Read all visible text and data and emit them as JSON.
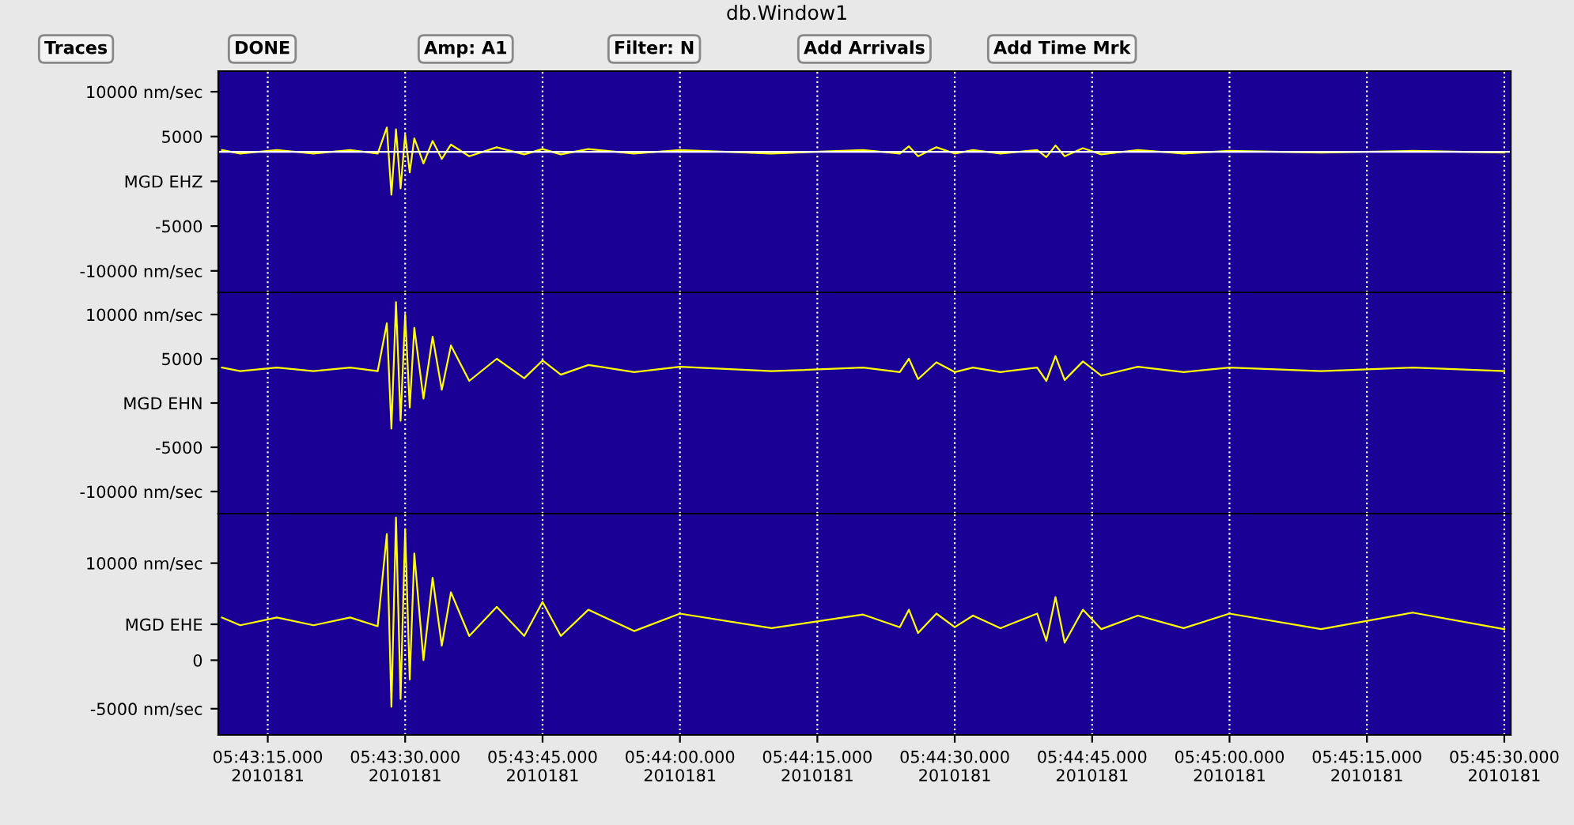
{
  "chart_data": [
    {
      "type": "line",
      "title": "db.Window1",
      "annotations": [
        "Traces",
        "DONE",
        "Amp: A1",
        "Filter: N",
        "Add Arrivals",
        "Add Time Mrk"
      ],
      "xlim": [
        "2010-06-30T05:43:09.6",
        "2010-06-30T05:45:30.7"
      ],
      "xticks": [
        {
          "value": "2010-06-30T05:43:15",
          "label": null
        },
        {
          "value": "2010-06-30T05:43:30",
          "label": null
        },
        {
          "value": "2010-06-30T05:43:45",
          "label": null
        },
        {
          "value": "2010-06-30T05:44:00",
          "label": null
        },
        {
          "value": "2010-06-30T05:44:15",
          "label": null
        },
        {
          "value": "2010-06-30T05:44:30",
          "label": null
        },
        {
          "value": "2010-06-30T05:44:45",
          "label": null
        },
        {
          "value": "2010-06-30T05:45:00",
          "label": null
        },
        {
          "value": "2010-06-30T05:45:15",
          "label": null
        },
        {
          "value": "2010-06-30T05:45:30",
          "label": null
        }
      ],
      "ylim": [
        -12400,
        12300
      ],
      "yticks": [
        {
          "value": 10000,
          "label": "10000 nm/sec"
        },
        5000,
        {
          "value": 0,
          "label": "MGD EHZ"
        },
        -5000,
        {
          "value": -10000,
          "label": "-10000 nm/sec"
        }
      ],
      "tick_labels": "y",
      "grid": "x",
      "ref_lines": [
        {
          "axis": "y",
          "value": 3300,
          "color": "#ffffff"
        }
      ],
      "series": [
        {
          "color": "#ffff00",
          "x": [
            "2010-06-30T05:43:10",
            "2010-06-30T05:43:12",
            "2010-06-30T05:43:16",
            "2010-06-30T05:43:20",
            "2010-06-30T05:43:24",
            "2010-06-30T05:43:27",
            "2010-06-30T05:43:28",
            "2010-06-30T05:43:28.5",
            "2010-06-30T05:43:29",
            "2010-06-30T05:43:29.5",
            "2010-06-30T05:43:30",
            "2010-06-30T05:43:30.5",
            "2010-06-30T05:43:31",
            "2010-06-30T05:43:32",
            "2010-06-30T05:43:33",
            "2010-06-30T05:43:34",
            "2010-06-30T05:43:35",
            "2010-06-30T05:43:37",
            "2010-06-30T05:43:40",
            "2010-06-30T05:43:43",
            "2010-06-30T05:43:45",
            "2010-06-30T05:43:47",
            "2010-06-30T05:43:50",
            "2010-06-30T05:43:55",
            "2010-06-30T05:44:00",
            "2010-06-30T05:44:10",
            "2010-06-30T05:44:20",
            "2010-06-30T05:44:24",
            "2010-06-30T05:44:25",
            "2010-06-30T05:44:26",
            "2010-06-30T05:44:28",
            "2010-06-30T05:44:30",
            "2010-06-30T05:44:32",
            "2010-06-30T05:44:35",
            "2010-06-30T05:44:39",
            "2010-06-30T05:44:40",
            "2010-06-30T05:44:41",
            "2010-06-30T05:44:42",
            "2010-06-30T05:44:44",
            "2010-06-30T05:44:46",
            "2010-06-30T05:44:50",
            "2010-06-30T05:44:55",
            "2010-06-30T05:45:00",
            "2010-06-30T05:45:10",
            "2010-06-30T05:45:20",
            "2010-06-30T05:45:30"
          ],
          "values": [
            3500,
            3100,
            3500,
            3100,
            3500,
            3100,
            6000,
            -1500,
            5800,
            -800,
            5200,
            1000,
            4800,
            2000,
            4500,
            2500,
            4100,
            2800,
            3800,
            3000,
            3600,
            3000,
            3600,
            3100,
            3500,
            3100,
            3500,
            3100,
            3900,
            2800,
            3800,
            3100,
            3500,
            3100,
            3500,
            2700,
            4000,
            2800,
            3700,
            3000,
            3500,
            3100,
            3400,
            3200,
            3400,
            3200
          ]
        }
      ]
    },
    {
      "type": "line",
      "xlim": [
        "2010-06-30T05:43:09.6",
        "2010-06-30T05:45:30.7"
      ],
      "xticks": [
        {
          "value": "2010-06-30T05:43:15",
          "label": null
        },
        {
          "value": "2010-06-30T05:43:30",
          "label": null
        },
        {
          "value": "2010-06-30T05:43:45",
          "label": null
        },
        {
          "value": "2010-06-30T05:44:00",
          "label": null
        },
        {
          "value": "2010-06-30T05:44:15",
          "label": null
        },
        {
          "value": "2010-06-30T05:44:30",
          "label": null
        },
        {
          "value": "2010-06-30T05:44:45",
          "label": null
        },
        {
          "value": "2010-06-30T05:45:00",
          "label": null
        },
        {
          "value": "2010-06-30T05:45:15",
          "label": null
        },
        {
          "value": "2010-06-30T05:45:30",
          "label": null
        }
      ],
      "ylim": [
        -12500,
        12500
      ],
      "yticks": [
        {
          "value": 10000,
          "label": "10000 nm/sec"
        },
        5000,
        {
          "value": 0,
          "label": "MGD EHN"
        },
        -5000,
        {
          "value": -10000,
          "label": "-10000 nm/sec"
        }
      ],
      "tick_labels": "y",
      "grid": "x",
      "series": [
        {
          "color": "#ffff00",
          "x": [
            "2010-06-30T05:43:10",
            "2010-06-30T05:43:12",
            "2010-06-30T05:43:16",
            "2010-06-30T05:43:20",
            "2010-06-30T05:43:24",
            "2010-06-30T05:43:27",
            "2010-06-30T05:43:28",
            "2010-06-30T05:43:28.5",
            "2010-06-30T05:43:29",
            "2010-06-30T05:43:29.5",
            "2010-06-30T05:43:30",
            "2010-06-30T05:43:30.5",
            "2010-06-30T05:43:31",
            "2010-06-30T05:43:32",
            "2010-06-30T05:43:33",
            "2010-06-30T05:43:34",
            "2010-06-30T05:43:35",
            "2010-06-30T05:43:37",
            "2010-06-30T05:43:40",
            "2010-06-30T05:43:43",
            "2010-06-30T05:43:45",
            "2010-06-30T05:43:47",
            "2010-06-30T05:43:50",
            "2010-06-30T05:43:55",
            "2010-06-30T05:44:00",
            "2010-06-30T05:44:10",
            "2010-06-30T05:44:20",
            "2010-06-30T05:44:24",
            "2010-06-30T05:44:25",
            "2010-06-30T05:44:26",
            "2010-06-30T05:44:28",
            "2010-06-30T05:44:30",
            "2010-06-30T05:44:32",
            "2010-06-30T05:44:35",
            "2010-06-30T05:44:39",
            "2010-06-30T05:44:40",
            "2010-06-30T05:44:41",
            "2010-06-30T05:44:42",
            "2010-06-30T05:44:44",
            "2010-06-30T05:44:46",
            "2010-06-30T05:44:50",
            "2010-06-30T05:44:55",
            "2010-06-30T05:45:00",
            "2010-06-30T05:45:10",
            "2010-06-30T05:45:20",
            "2010-06-30T05:45:30"
          ],
          "values": [
            4000,
            3600,
            4000,
            3600,
            4000,
            3600,
            9000,
            -2900,
            11400,
            -2000,
            10000,
            -500,
            8500,
            500,
            7500,
            1500,
            6500,
            2500,
            5000,
            2800,
            4800,
            3200,
            4300,
            3500,
            4100,
            3600,
            4000,
            3500,
            5000,
            2700,
            4600,
            3500,
            4000,
            3500,
            4000,
            2500,
            5300,
            2600,
            4700,
            3100,
            4100,
            3500,
            4000,
            3600,
            4000,
            3600
          ]
        }
      ]
    },
    {
      "type": "line",
      "xlim": [
        "2010-06-30T05:43:09.6",
        "2010-06-30T05:45:30.7"
      ],
      "xticks": [
        {
          "value": "2010-06-30T05:43:15",
          "label": "05:43:15.000\n2010181"
        },
        {
          "value": "2010-06-30T05:43:30",
          "label": "05:43:30.000\n2010181"
        },
        {
          "value": "2010-06-30T05:43:45",
          "label": "05:43:45.000\n2010181"
        },
        {
          "value": "2010-06-30T05:44:00",
          "label": "05:44:00.000\n2010181"
        },
        {
          "value": "2010-06-30T05:44:15",
          "label": "05:44:15.000\n2010181"
        },
        {
          "value": "2010-06-30T05:44:30",
          "label": "05:44:30.000\n2010181"
        },
        {
          "value": "2010-06-30T05:44:45",
          "label": "05:44:45.000\n2010181"
        },
        {
          "value": "2010-06-30T05:45:00",
          "label": "05:45:00.000\n2010181"
        },
        {
          "value": "2010-06-30T05:45:15",
          "label": "05:45:15.000\n2010181"
        },
        {
          "value": "2010-06-30T05:45:30",
          "label": "05:45:30.000\n2010181"
        }
      ],
      "ylim": [
        -7700,
        15100
      ],
      "yticks": [
        {
          "value": 10000,
          "label": "10000 nm/sec"
        },
        {
          "value": 3700,
          "label": "MGD EHE"
        },
        0,
        {
          "value": -5000,
          "label": "-5000 nm/sec"
        }
      ],
      "grid": "x",
      "series": [
        {
          "color": "#ffff00",
          "x": [
            "2010-06-30T05:43:10",
            "2010-06-30T05:43:12",
            "2010-06-30T05:43:16",
            "2010-06-30T05:43:20",
            "2010-06-30T05:43:24",
            "2010-06-30T05:43:27",
            "2010-06-30T05:43:28",
            "2010-06-30T05:43:28.5",
            "2010-06-30T05:43:29",
            "2010-06-30T05:43:29.5",
            "2010-06-30T05:43:30",
            "2010-06-30T05:43:30.5",
            "2010-06-30T05:43:31",
            "2010-06-30T05:43:32",
            "2010-06-30T05:43:33",
            "2010-06-30T05:43:34",
            "2010-06-30T05:43:35",
            "2010-06-30T05:43:37",
            "2010-06-30T05:43:40",
            "2010-06-30T05:43:43",
            "2010-06-30T05:43:45",
            "2010-06-30T05:43:47",
            "2010-06-30T05:43:50",
            "2010-06-30T05:43:55",
            "2010-06-30T05:44:00",
            "2010-06-30T05:44:10",
            "2010-06-30T05:44:20",
            "2010-06-30T05:44:24",
            "2010-06-30T05:44:25",
            "2010-06-30T05:44:26",
            "2010-06-30T05:44:28",
            "2010-06-30T05:44:30",
            "2010-06-30T05:44:32",
            "2010-06-30T05:44:35",
            "2010-06-30T05:44:39",
            "2010-06-30T05:44:40",
            "2010-06-30T05:44:41",
            "2010-06-30T05:44:42",
            "2010-06-30T05:44:44",
            "2010-06-30T05:44:46",
            "2010-06-30T05:44:50",
            "2010-06-30T05:44:55",
            "2010-06-30T05:45:00",
            "2010-06-30T05:45:10",
            "2010-06-30T05:45:20",
            "2010-06-30T05:45:30"
          ],
          "values": [
            4400,
            3600,
            4400,
            3600,
            4400,
            3500,
            13000,
            -4800,
            14700,
            -4000,
            13500,
            -2000,
            11000,
            0,
            8500,
            1500,
            7000,
            2500,
            5500,
            2500,
            6000,
            2500,
            5200,
            3000,
            4800,
            3300,
            4700,
            3400,
            5200,
            2800,
            4800,
            3400,
            4600,
            3300,
            4800,
            2000,
            6500,
            1800,
            5200,
            3200,
            4600,
            3300,
            4800,
            3200,
            4900,
            3200
          ]
        }
      ]
    }
  ]
}
